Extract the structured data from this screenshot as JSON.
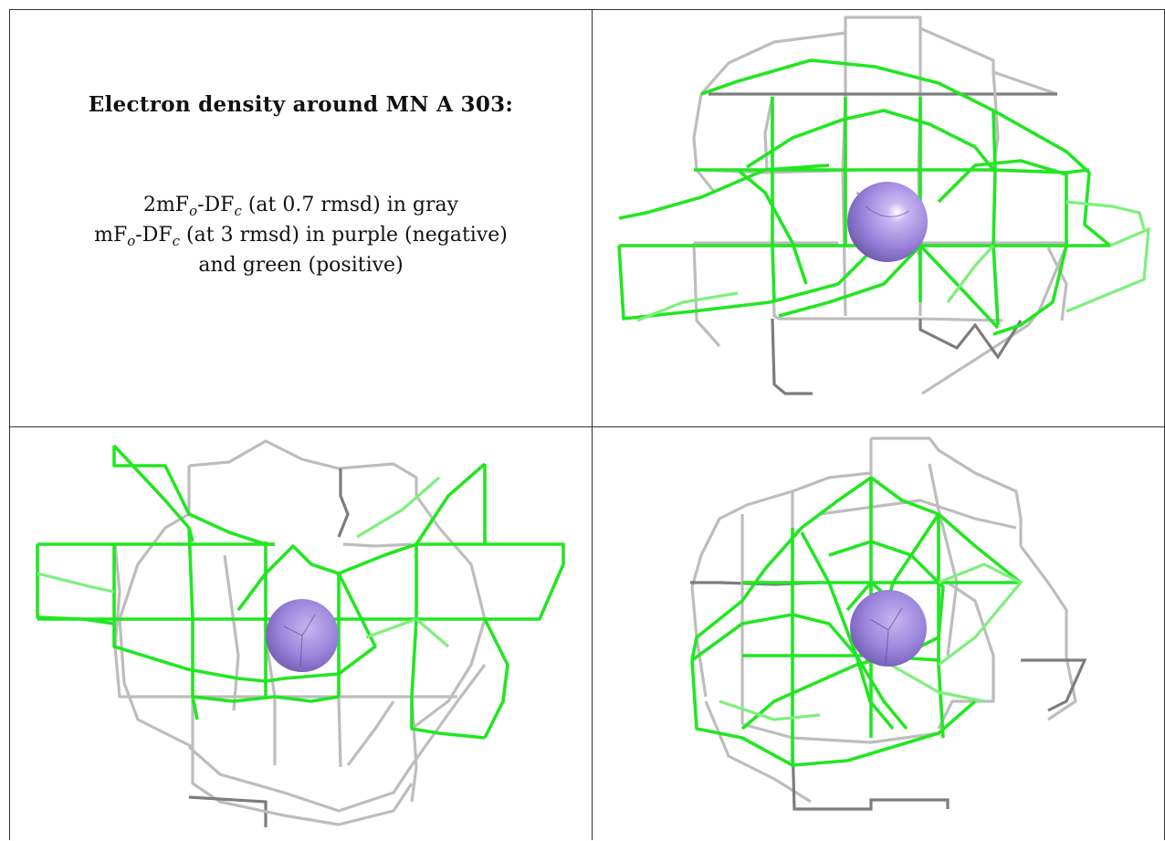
{
  "caption": {
    "title": "Electron density around MN A 303:",
    "line1": {
      "pre": "2mF",
      "sub1": "o",
      "mid": "-DF",
      "sub2": "c",
      "post": " (at 0.7 rmsd) in gray"
    },
    "line2": {
      "pre": "mF",
      "sub1": "o",
      "mid": "-DF",
      "sub2": "c",
      "post": " (at 3 rmsd) in purple (negative)"
    },
    "line3": "and green (positive)"
  },
  "colors": {
    "map_2fofc": "#bdbdbd",
    "map_fofc_positive": "#22e622",
    "map_fofc_negative": "#9b7fd8",
    "ion_sphere": "#9b85dd"
  },
  "views": [
    {
      "name": "view-1",
      "ion": "sphere-icon"
    },
    {
      "name": "view-2",
      "ion": "sphere-icon"
    },
    {
      "name": "view-3",
      "ion": "sphere-icon"
    }
  ]
}
